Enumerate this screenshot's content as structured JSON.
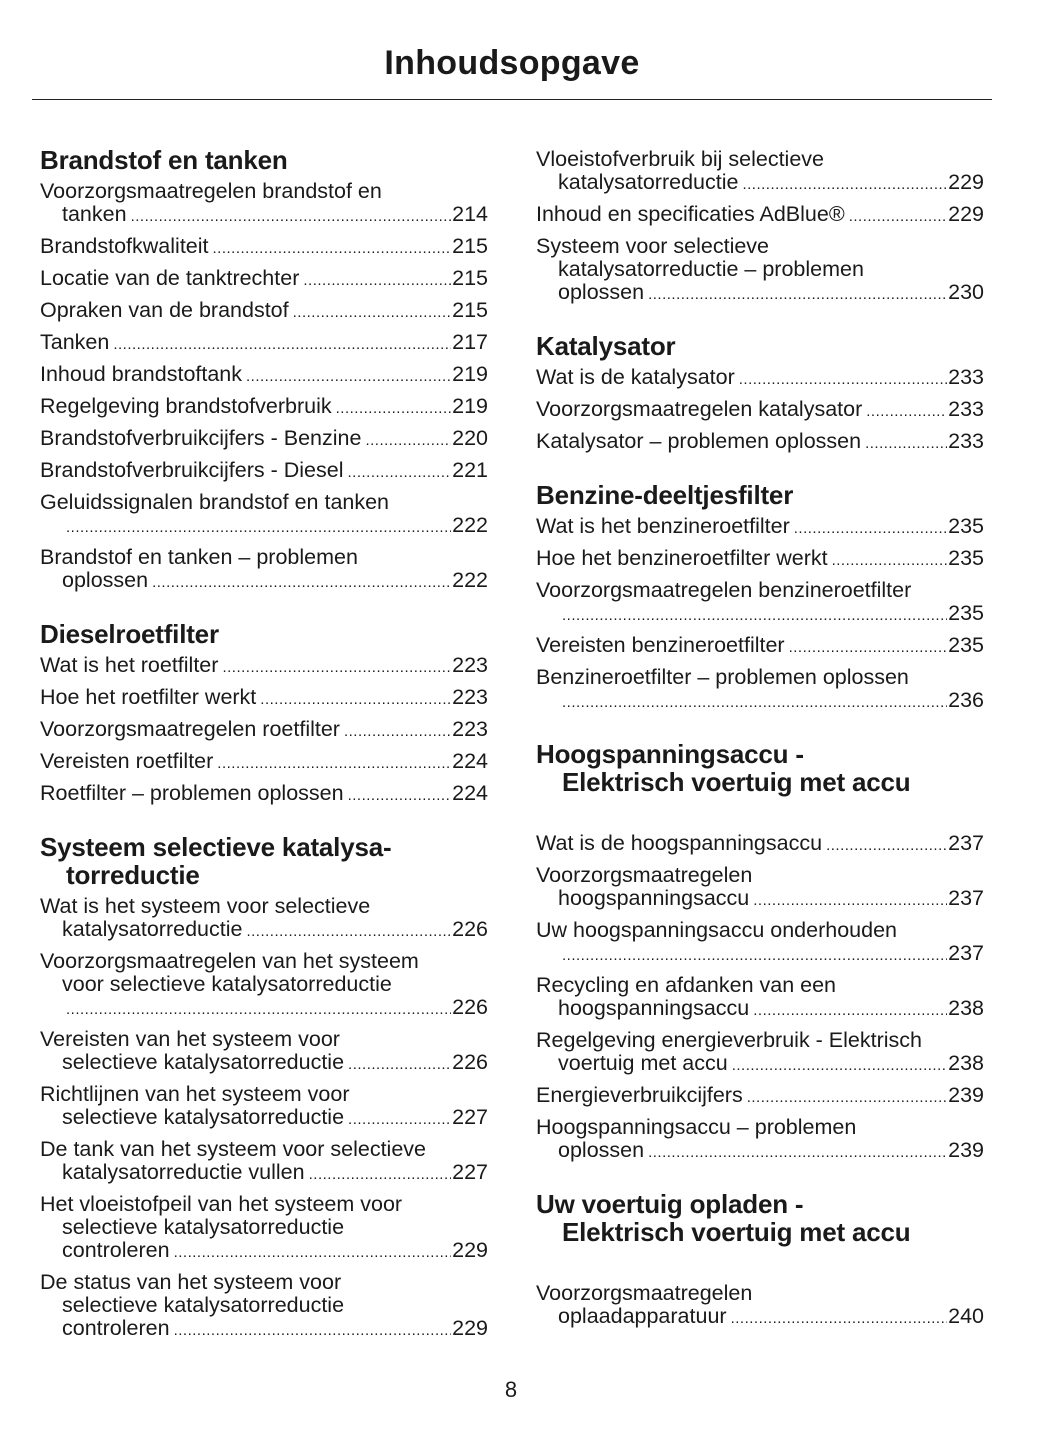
{
  "title": "Inhoudsopgave",
  "page_number": "8",
  "columns": [
    [
      {
        "heading": [
          "Brandstof en tanken"
        ],
        "entries": [
          {
            "lines": [
              "Voorzorgsmaatregelen brandstof en",
              "tanken"
            ],
            "page": "214"
          },
          {
            "lines": [
              "Brandstofkwaliteit"
            ],
            "page": "215"
          },
          {
            "lines": [
              "Locatie van de tanktrechter"
            ],
            "page": "215"
          },
          {
            "lines": [
              "Opraken van de brandstof"
            ],
            "page": "215"
          },
          {
            "lines": [
              "Tanken"
            ],
            "page": "217"
          },
          {
            "lines": [
              "Inhoud brandstoftank"
            ],
            "page": "219"
          },
          {
            "lines": [
              "Regelgeving brandstofverbruik"
            ],
            "page": "219"
          },
          {
            "lines": [
              "Brandstofverbruikcijfers - Benzine"
            ],
            "page": "220"
          },
          {
            "lines": [
              "Brandstofverbruikcijfers - Diesel"
            ],
            "page": "221"
          },
          {
            "lines": [
              "Geluidssignalen brandstof en tanken",
              ""
            ],
            "page": "222"
          },
          {
            "lines": [
              "Brandstof en tanken – problemen",
              "oplossen"
            ],
            "page": "222"
          }
        ]
      },
      {
        "heading": [
          "Dieselroetfilter"
        ],
        "entries": [
          {
            "lines": [
              "Wat is het roetfilter"
            ],
            "page": "223"
          },
          {
            "lines": [
              "Hoe het roetfilter werkt"
            ],
            "page": "223"
          },
          {
            "lines": [
              "Voorzorgsmaatregelen roetfilter"
            ],
            "page": "223"
          },
          {
            "lines": [
              "Vereisten roetfilter"
            ],
            "page": "224"
          },
          {
            "lines": [
              "Roetfilter – problemen oplossen"
            ],
            "page": "224"
          }
        ]
      },
      {
        "heading": [
          "Systeem selectieve katalysa-",
          "torreductie"
        ],
        "entries": [
          {
            "lines": [
              "Wat is het systeem voor selectieve",
              "katalysatorreductie"
            ],
            "page": "226"
          },
          {
            "lines": [
              "Voorzorgsmaatregelen van het systeem",
              "voor selectieve katalysatorreductie",
              ""
            ],
            "page": "226"
          },
          {
            "lines": [
              "Vereisten van het systeem voor",
              "selectieve katalysatorreductie"
            ],
            "page": "226"
          },
          {
            "lines": [
              "Richtlijnen van het systeem voor",
              "selectieve katalysatorreductie"
            ],
            "page": "227"
          },
          {
            "lines": [
              "De tank van het systeem voor selectieve",
              "katalysatorreductie vullen"
            ],
            "page": "227"
          },
          {
            "lines": [
              "Het vloeistofpeil van het systeem voor",
              "selectieve katalysatorreductie",
              "controleren"
            ],
            "page": "229"
          },
          {
            "lines": [
              "De status van het systeem voor",
              "selectieve katalysatorreductie",
              "controleren"
            ],
            "page": "229"
          }
        ]
      }
    ],
    [
      {
        "heading": [],
        "entries": [
          {
            "lines": [
              "Vloeistofverbruik bij selectieve",
              "katalysatorreductie"
            ],
            "page": "229"
          },
          {
            "lines": [
              "Inhoud en specificaties AdBlue®"
            ],
            "page": "229"
          },
          {
            "lines": [
              "Systeem voor selectieve",
              "katalysatorreductie – problemen",
              "oplossen"
            ],
            "page": "230"
          }
        ]
      },
      {
        "heading": [
          "Katalysator"
        ],
        "entries": [
          {
            "lines": [
              "Wat is de katalysator"
            ],
            "page": "233"
          },
          {
            "lines": [
              "Voorzorgsmaatregelen katalysator"
            ],
            "page": "233"
          },
          {
            "lines": [
              "Katalysator – problemen oplossen"
            ],
            "page": "233"
          }
        ]
      },
      {
        "heading": [
          "Benzine-deeltjesfilter"
        ],
        "entries": [
          {
            "lines": [
              "Wat is het benzineroetfilter"
            ],
            "page": "235"
          },
          {
            "lines": [
              "Hoe het benzineroetfilter werkt"
            ],
            "page": "235"
          },
          {
            "lines": [
              "Voorzorgsmaatregelen benzineroetfilter",
              ""
            ],
            "page": "235"
          },
          {
            "lines": [
              "Vereisten benzineroetfilter"
            ],
            "page": "235"
          },
          {
            "lines": [
              "Benzineroetfilter – problemen oplossen",
              ""
            ],
            "page": "236"
          }
        ]
      },
      {
        "heading": [
          "Hoogspanningsaccu -",
          "Elektrisch voertuig met accu"
        ],
        "spaced": true,
        "entries": [
          {
            "lines": [
              "Wat is de hoogspanningsaccu"
            ],
            "page": "237"
          },
          {
            "lines": [
              "Voorzorgsmaatregelen",
              "hoogspanningsaccu"
            ],
            "page": "237"
          },
          {
            "lines": [
              "Uw hoogspanningsaccu onderhouden",
              ""
            ],
            "page": "237"
          },
          {
            "lines": [
              "Recycling en afdanken van een",
              "hoogspanningsaccu"
            ],
            "page": "238"
          },
          {
            "lines": [
              "Regelgeving energieverbruik - Elektrisch",
              "voertuig met accu"
            ],
            "page": "238"
          },
          {
            "lines": [
              "Energieverbruikcijfers"
            ],
            "page": "239"
          },
          {
            "lines": [
              "Hoogspanningsaccu – problemen",
              "oplossen"
            ],
            "page": "239"
          }
        ]
      },
      {
        "heading": [
          "Uw voertuig opladen -",
          "Elektrisch voertuig met accu"
        ],
        "spaced": true,
        "entries": [
          {
            "lines": [
              "Voorzorgsmaatregelen",
              "oplaadapparatuur"
            ],
            "page": "240"
          }
        ]
      }
    ]
  ]
}
